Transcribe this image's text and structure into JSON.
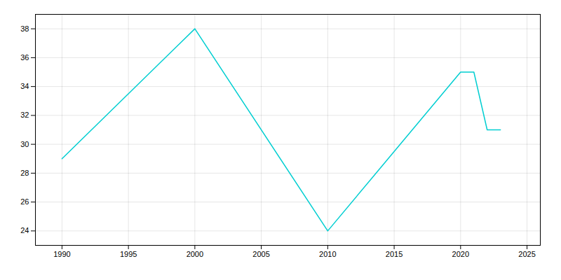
{
  "chart_data": {
    "type": "line",
    "x": [
      1990,
      2000,
      2010,
      2020,
      2021,
      2022,
      2023
    ],
    "values": [
      29,
      38,
      24,
      35,
      35,
      31,
      31
    ],
    "color": "#00CED1",
    "xlim": [
      1988,
      2026
    ],
    "xticks": [
      1990,
      1995,
      2000,
      2005,
      2010,
      2015,
      2020,
      2025
    ],
    "ylim": [
      23,
      39
    ],
    "yticks": [
      24,
      26,
      28,
      30,
      32,
      34,
      36,
      38
    ],
    "grid": true
  }
}
